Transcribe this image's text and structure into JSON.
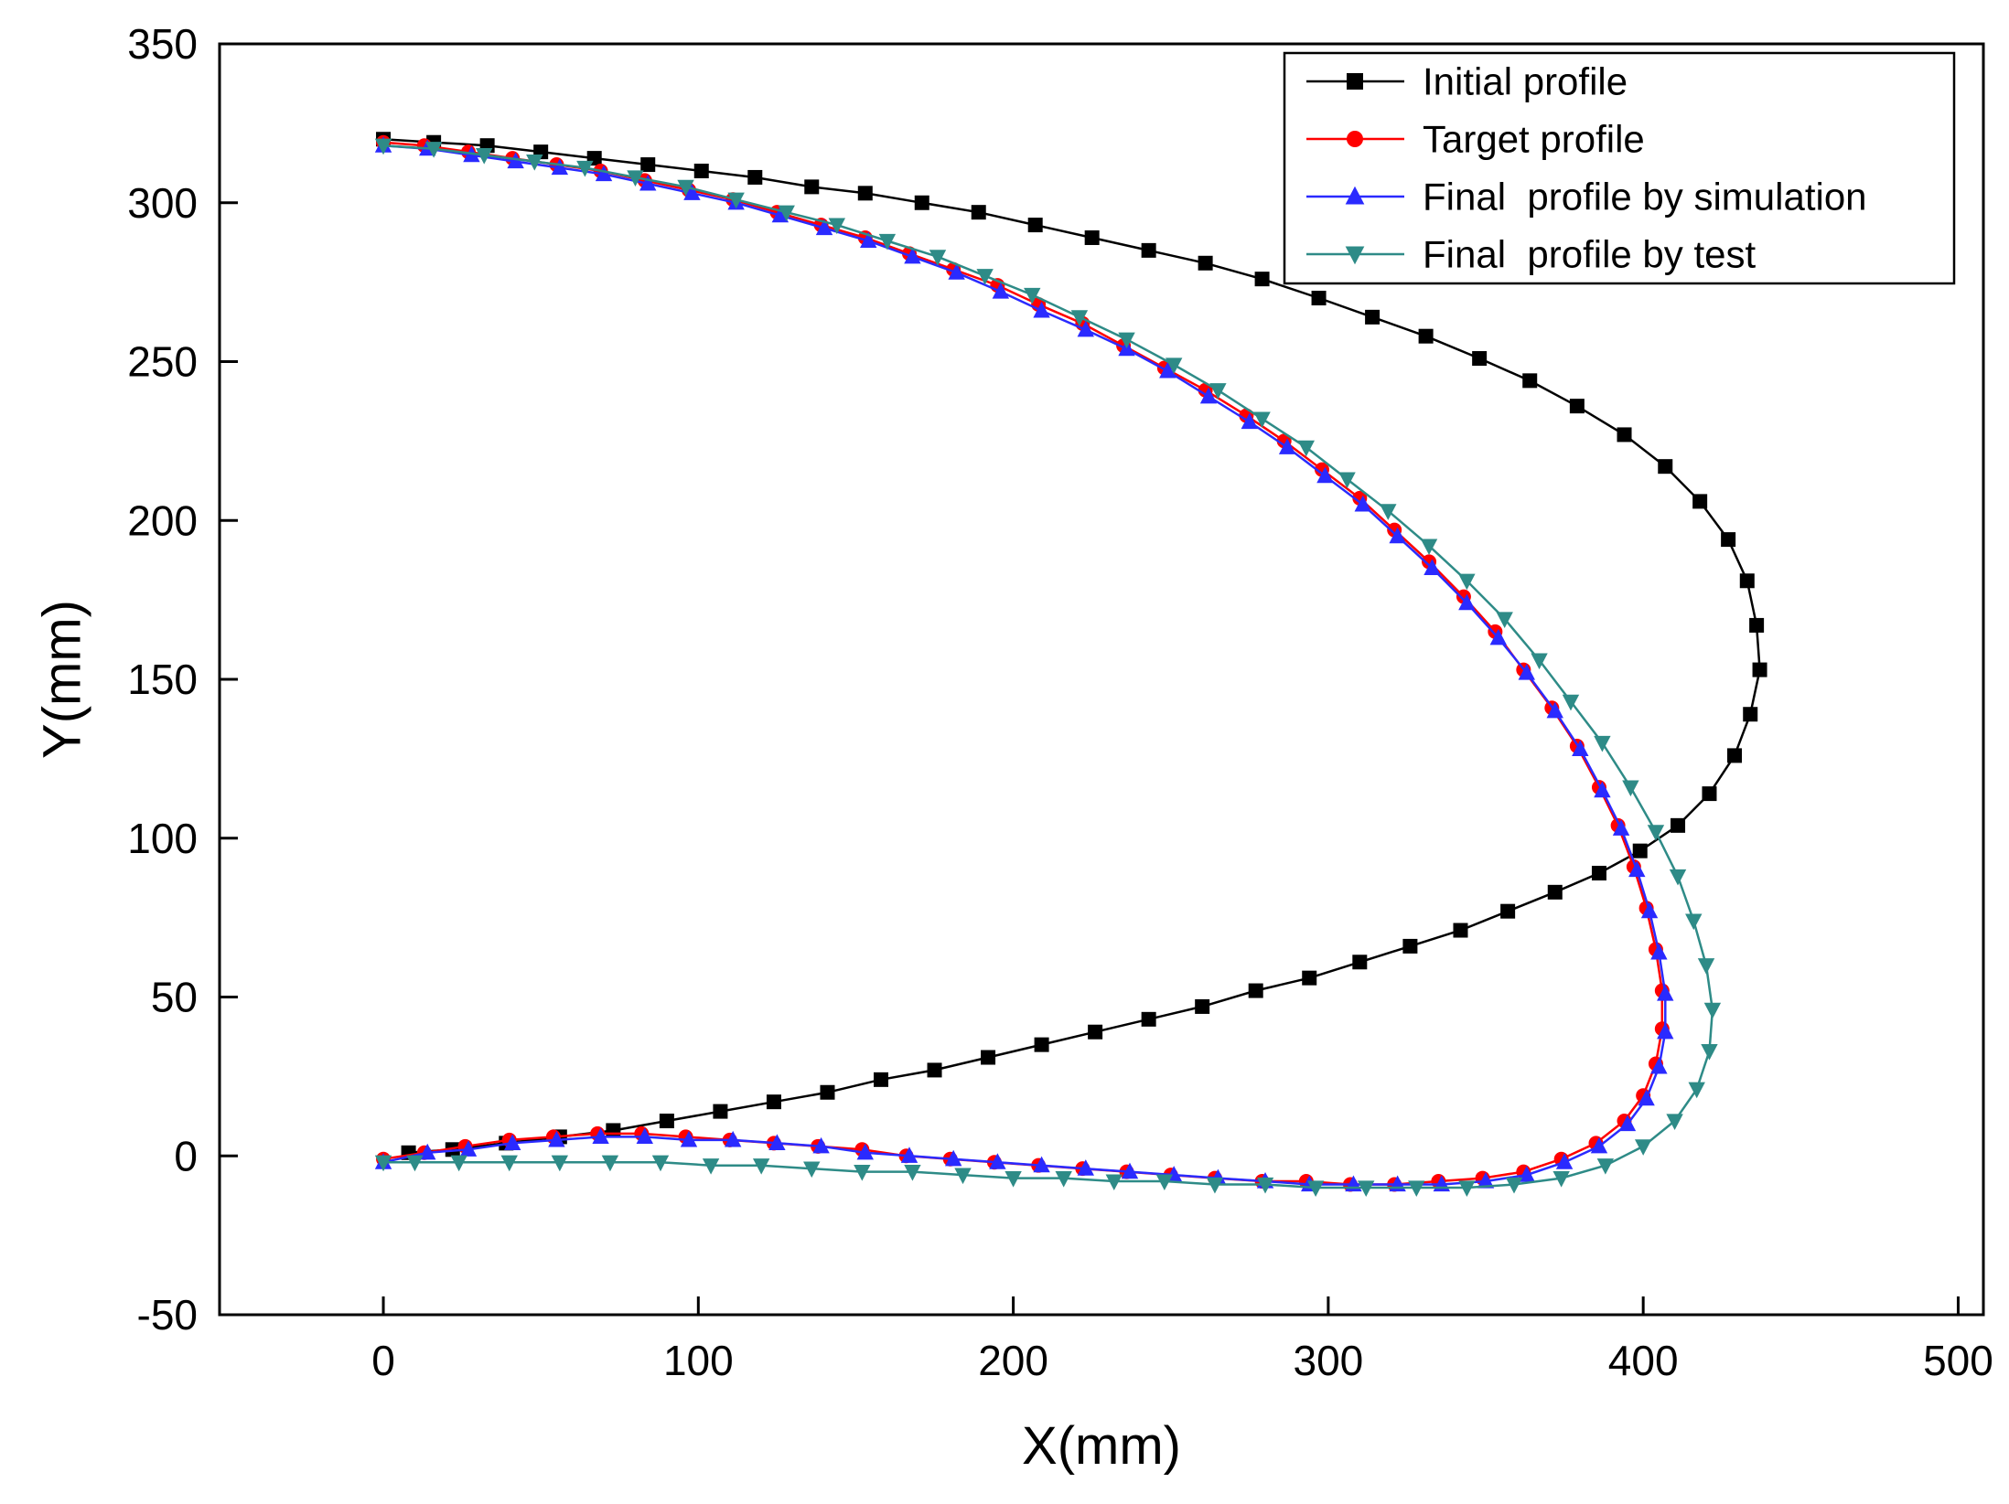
{
  "figure": {
    "background": "#ffffff",
    "axis_color": "#000000"
  },
  "chart_data": {
    "type": "line",
    "title": "",
    "xlabel": "X(mm)",
    "ylabel": "Y(mm)",
    "xlim": [
      -52,
      508
    ],
    "ylim": [
      -50,
      350
    ],
    "xticks": [
      0,
      100,
      200,
      300,
      400,
      500
    ],
    "yticks": [
      -50,
      0,
      50,
      100,
      150,
      200,
      250,
      300,
      350
    ],
    "grid": false,
    "legend": {
      "position": "top-right",
      "border_color": "#000000",
      "background": "#ffffff"
    },
    "series": [
      {
        "name": "Initial profile",
        "color": "#000000",
        "marker": "square",
        "points": [
          [
            0,
            320
          ],
          [
            16,
            319
          ],
          [
            33,
            318
          ],
          [
            50,
            316
          ],
          [
            67,
            314
          ],
          [
            84,
            312
          ],
          [
            101,
            310
          ],
          [
            118,
            308
          ],
          [
            136,
            305
          ],
          [
            153,
            303
          ],
          [
            171,
            300
          ],
          [
            189,
            297
          ],
          [
            207,
            293
          ],
          [
            225,
            289
          ],
          [
            243,
            285
          ],
          [
            261,
            281
          ],
          [
            279,
            276
          ],
          [
            297,
            270
          ],
          [
            314,
            264
          ],
          [
            331,
            258
          ],
          [
            348,
            251
          ],
          [
            364,
            244
          ],
          [
            379,
            236
          ],
          [
            394,
            227
          ],
          [
            407,
            217
          ],
          [
            418,
            206
          ],
          [
            427,
            194
          ],
          [
            433,
            181
          ],
          [
            436,
            167
          ],
          [
            437,
            153
          ],
          [
            434,
            139
          ],
          [
            429,
            126
          ],
          [
            421,
            114
          ],
          [
            411,
            104
          ],
          [
            399,
            96
          ],
          [
            386,
            89
          ],
          [
            372,
            83
          ],
          [
            357,
            77
          ],
          [
            342,
            71
          ],
          [
            326,
            66
          ],
          [
            310,
            61
          ],
          [
            294,
            56
          ],
          [
            277,
            52
          ],
          [
            260,
            47
          ],
          [
            243,
            43
          ],
          [
            226,
            39
          ],
          [
            209,
            35
          ],
          [
            192,
            31
          ],
          [
            175,
            27
          ],
          [
            158,
            24
          ],
          [
            141,
            20
          ],
          [
            124,
            17
          ],
          [
            107,
            14
          ],
          [
            90,
            11
          ],
          [
            73,
            8
          ],
          [
            56,
            6
          ],
          [
            39,
            4
          ],
          [
            22,
            2
          ],
          [
            8,
            1
          ]
        ]
      },
      {
        "name": "Target profile",
        "color": "#ff0000",
        "marker": "circle",
        "points": [
          [
            0,
            319
          ],
          [
            13,
            318
          ],
          [
            27,
            316
          ],
          [
            41,
            314
          ],
          [
            55,
            312
          ],
          [
            69,
            310
          ],
          [
            83,
            307
          ],
          [
            97,
            304
          ],
          [
            111,
            301
          ],
          [
            125,
            297
          ],
          [
            139,
            293
          ],
          [
            153,
            289
          ],
          [
            167,
            284
          ],
          [
            181,
            279
          ],
          [
            195,
            274
          ],
          [
            208,
            268
          ],
          [
            222,
            262
          ],
          [
            235,
            255
          ],
          [
            248,
            248
          ],
          [
            261,
            241
          ],
          [
            274,
            233
          ],
          [
            286,
            225
          ],
          [
            298,
            216
          ],
          [
            310,
            207
          ],
          [
            321,
            197
          ],
          [
            332,
            187
          ],
          [
            343,
            176
          ],
          [
            353,
            165
          ],
          [
            362,
            153
          ],
          [
            371,
            141
          ],
          [
            379,
            129
          ],
          [
            386,
            116
          ],
          [
            392,
            104
          ],
          [
            397,
            91
          ],
          [
            401,
            78
          ],
          [
            404,
            65
          ],
          [
            406,
            52
          ],
          [
            406,
            40
          ],
          [
            404,
            29
          ],
          [
            400,
            19
          ],
          [
            394,
            11
          ],
          [
            385,
            4
          ],
          [
            374,
            -1
          ],
          [
            362,
            -5
          ],
          [
            349,
            -7
          ],
          [
            335,
            -8
          ],
          [
            321,
            -9
          ],
          [
            307,
            -9
          ],
          [
            293,
            -8
          ],
          [
            279,
            -8
          ],
          [
            264,
            -7
          ],
          [
            250,
            -6
          ],
          [
            236,
            -5
          ],
          [
            222,
            -4
          ],
          [
            208,
            -3
          ],
          [
            194,
            -2
          ],
          [
            180,
            -1
          ],
          [
            166,
            0
          ],
          [
            152,
            2
          ],
          [
            138,
            3
          ],
          [
            124,
            4
          ],
          [
            110,
            5
          ],
          [
            96,
            6
          ],
          [
            82,
            7
          ],
          [
            68,
            7
          ],
          [
            54,
            6
          ],
          [
            40,
            5
          ],
          [
            26,
            3
          ],
          [
            13,
            1
          ],
          [
            0,
            -1
          ]
        ]
      },
      {
        "name": "Final  profile by simulation",
        "color": "#2a2aff",
        "marker": "triangle-up",
        "points": [
          [
            0,
            318
          ],
          [
            14,
            317
          ],
          [
            28,
            315
          ],
          [
            42,
            313
          ],
          [
            56,
            311
          ],
          [
            70,
            309
          ],
          [
            84,
            306
          ],
          [
            98,
            303
          ],
          [
            112,
            300
          ],
          [
            126,
            296
          ],
          [
            140,
            292
          ],
          [
            154,
            288
          ],
          [
            168,
            283
          ],
          [
            182,
            278
          ],
          [
            196,
            272
          ],
          [
            209,
            266
          ],
          [
            223,
            260
          ],
          [
            236,
            254
          ],
          [
            249,
            247
          ],
          [
            262,
            239
          ],
          [
            275,
            231
          ],
          [
            287,
            223
          ],
          [
            299,
            214
          ],
          [
            311,
            205
          ],
          [
            322,
            195
          ],
          [
            333,
            185
          ],
          [
            344,
            174
          ],
          [
            354,
            163
          ],
          [
            363,
            152
          ],
          [
            372,
            140
          ],
          [
            380,
            128
          ],
          [
            387,
            115
          ],
          [
            393,
            103
          ],
          [
            398,
            90
          ],
          [
            402,
            77
          ],
          [
            405,
            64
          ],
          [
            407,
            51
          ],
          [
            407,
            39
          ],
          [
            405,
            28
          ],
          [
            401,
            18
          ],
          [
            395,
            10
          ],
          [
            386,
            3
          ],
          [
            375,
            -2
          ],
          [
            363,
            -6
          ],
          [
            350,
            -8
          ],
          [
            336,
            -9
          ],
          [
            322,
            -9
          ],
          [
            308,
            -9
          ],
          [
            294,
            -9
          ],
          [
            280,
            -8
          ],
          [
            265,
            -7
          ],
          [
            251,
            -6
          ],
          [
            237,
            -5
          ],
          [
            223,
            -4
          ],
          [
            209,
            -3
          ],
          [
            195,
            -2
          ],
          [
            181,
            -1
          ],
          [
            167,
            0
          ],
          [
            153,
            1
          ],
          [
            139,
            3
          ],
          [
            125,
            4
          ],
          [
            111,
            5
          ],
          [
            97,
            5
          ],
          [
            83,
            6
          ],
          [
            69,
            6
          ],
          [
            55,
            5
          ],
          [
            41,
            4
          ],
          [
            27,
            2
          ],
          [
            14,
            1
          ],
          [
            0,
            -2
          ]
        ]
      },
      {
        "name": "Final  profile by test",
        "color": "#2e8b87",
        "marker": "triangle-down",
        "points": [
          [
            0,
            318
          ],
          [
            16,
            317
          ],
          [
            32,
            315
          ],
          [
            48,
            313
          ],
          [
            64,
            311
          ],
          [
            80,
            308
          ],
          [
            96,
            305
          ],
          [
            112,
            301
          ],
          [
            128,
            297
          ],
          [
            144,
            293
          ],
          [
            160,
            288
          ],
          [
            176,
            283
          ],
          [
            191,
            277
          ],
          [
            206,
            271
          ],
          [
            221,
            264
          ],
          [
            236,
            257
          ],
          [
            251,
            249
          ],
          [
            265,
            241
          ],
          [
            279,
            232
          ],
          [
            293,
            223
          ],
          [
            306,
            213
          ],
          [
            319,
            203
          ],
          [
            332,
            192
          ],
          [
            344,
            181
          ],
          [
            356,
            169
          ],
          [
            367,
            156
          ],
          [
            377,
            143
          ],
          [
            387,
            130
          ],
          [
            396,
            116
          ],
          [
            404,
            102
          ],
          [
            411,
            88
          ],
          [
            416,
            74
          ],
          [
            420,
            60
          ],
          [
            422,
            46
          ],
          [
            421,
            33
          ],
          [
            417,
            21
          ],
          [
            410,
            11
          ],
          [
            400,
            3
          ],
          [
            388,
            -3
          ],
          [
            374,
            -7
          ],
          [
            359,
            -9
          ],
          [
            344,
            -10
          ],
          [
            328,
            -10
          ],
          [
            312,
            -10
          ],
          [
            296,
            -10
          ],
          [
            280,
            -9
          ],
          [
            264,
            -9
          ],
          [
            248,
            -8
          ],
          [
            232,
            -8
          ],
          [
            216,
            -7
          ],
          [
            200,
            -7
          ],
          [
            184,
            -6
          ],
          [
            168,
            -5
          ],
          [
            152,
            -5
          ],
          [
            136,
            -4
          ],
          [
            120,
            -3
          ],
          [
            104,
            -3
          ],
          [
            88,
            -2
          ],
          [
            72,
            -2
          ],
          [
            56,
            -2
          ],
          [
            40,
            -2
          ],
          [
            24,
            -2
          ],
          [
            10,
            -2
          ],
          [
            0,
            -2
          ]
        ]
      }
    ]
  }
}
